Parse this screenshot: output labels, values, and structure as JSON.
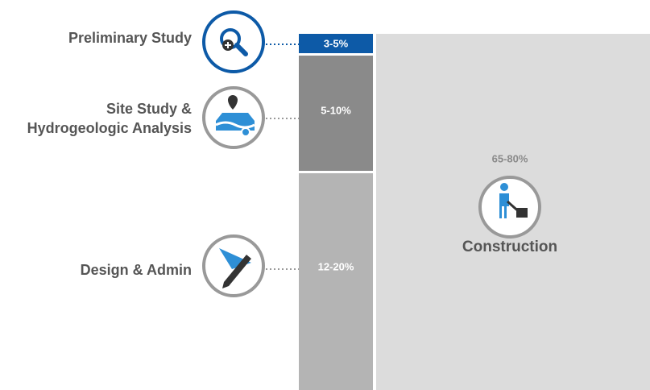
{
  "phases": [
    {
      "label_lines": [
        "Preliminary Study"
      ],
      "range": "3-5%"
    },
    {
      "label_lines": [
        "Site Study &",
        "Hydrogeologic Analysis"
      ],
      "range": "5-10%"
    },
    {
      "label_lines": [
        "Design & Admin"
      ],
      "range": "12-20%"
    }
  ],
  "construction": {
    "label": "Construction",
    "range": "65-80%"
  }
}
